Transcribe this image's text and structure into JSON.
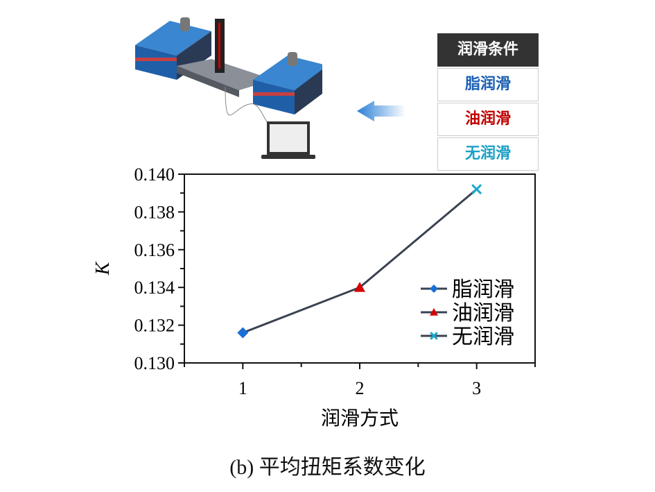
{
  "illustration": {
    "table_header": "润滑条件",
    "conditions": [
      {
        "label": "脂润滑",
        "color": "#1a5fb4"
      },
      {
        "label": "油润滑",
        "color": "#c00000"
      },
      {
        "label": "无润滑",
        "color": "#1aa0c8"
      }
    ]
  },
  "chart_data": {
    "type": "line",
    "xlabel": "润滑方式",
    "ylabel": "K",
    "xlim": [
      0.5,
      3.5
    ],
    "ylim": [
      0.13,
      0.14
    ],
    "x_ticks": [
      "1",
      "2",
      "3"
    ],
    "y_ticks": [
      "0.130",
      "0.132",
      "0.134",
      "0.136",
      "0.138",
      "0.140"
    ],
    "grid": false,
    "legend_position": "bottom-right",
    "line_color": "#3a4250",
    "points": [
      {
        "x": 1,
        "y": 0.1316,
        "name": "脂润滑",
        "marker": "diamond",
        "color": "#1a6fd6"
      },
      {
        "x": 2,
        "y": 0.134,
        "name": "油润滑",
        "marker": "triangle",
        "color": "#d60000"
      },
      {
        "x": 3,
        "y": 0.1392,
        "name": "无润滑",
        "marker": "x",
        "color": "#1aa8cc"
      }
    ]
  },
  "caption": "(b) 平均扭矩系数变化"
}
